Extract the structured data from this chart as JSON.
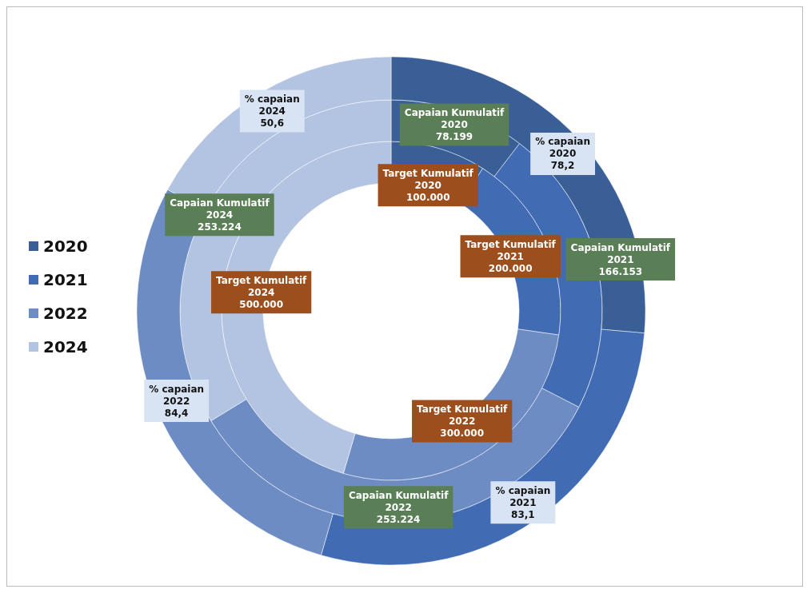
{
  "chart_data": {
    "type": "donut",
    "categories": [
      "2020",
      "2021",
      "2022",
      "2024"
    ],
    "colors": [
      "#3a5f96",
      "#416cb4",
      "#6e8cc4",
      "#b3c3e2"
    ],
    "legend": "left",
    "series": [
      {
        "name": "Target Kumulatif",
        "values": [
          100000,
          200000,
          300000,
          500000
        ],
        "value_labels": [
          "100.000",
          "200.000",
          "300.000",
          "500.000"
        ]
      },
      {
        "name": "Capaian Kumulatif",
        "values": [
          78199,
          166153,
          253224,
          253224
        ],
        "value_labels": [
          "78.199",
          "166.153",
          "253.224",
          "253.224"
        ]
      },
      {
        "name": "% capaian",
        "values": [
          78.2,
          83.1,
          84.4,
          50.6
        ],
        "value_labels": [
          "78,2",
          "83,1",
          "84,4",
          "50,6"
        ]
      }
    ]
  }
}
